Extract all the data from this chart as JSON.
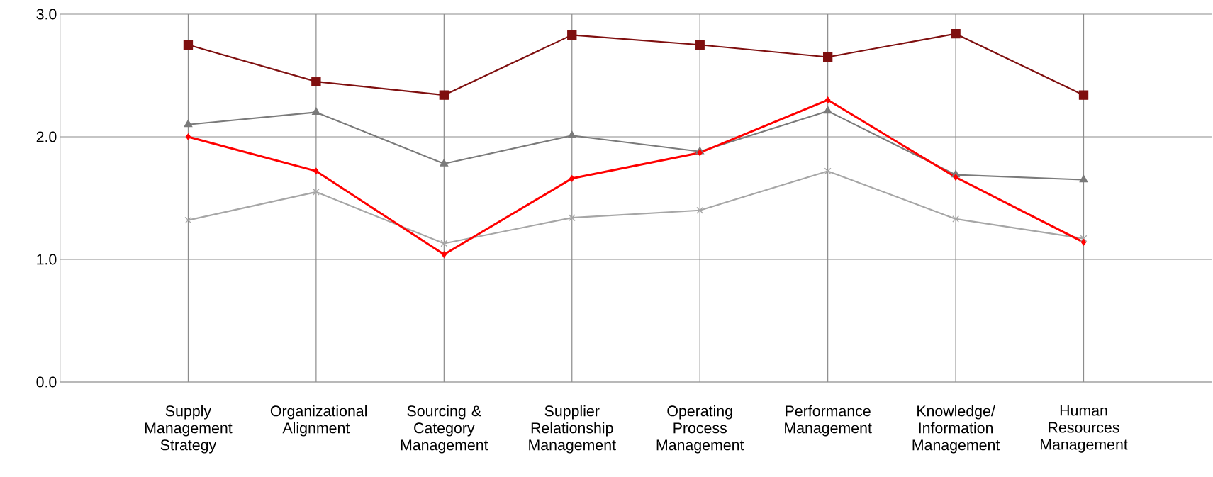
{
  "chart_data": {
    "type": "line",
    "categories": [
      "Supply Management Strategy",
      "Organizational Alignment",
      "Sourcing & Category Management",
      "Supplier Relationship Management",
      "Operating Process Management",
      "Performance Management",
      "Knowledge/ Information Management",
      "Human Resources Management"
    ],
    "series": [
      {
        "color": "#7f0f0f",
        "marker": "square",
        "values": [
          2.75,
          2.45,
          2.34,
          2.83,
          2.75,
          2.65,
          2.84,
          2.34
        ]
      },
      {
        "color": "#7a7a7a",
        "marker": "triangle",
        "values": [
          2.1,
          2.2,
          1.78,
          2.01,
          1.88,
          2.21,
          1.69,
          1.65
        ]
      },
      {
        "color": "#a6a6a6",
        "marker": "cross",
        "values": [
          1.32,
          1.55,
          1.13,
          1.34,
          1.4,
          1.72,
          1.33,
          1.17
        ]
      },
      {
        "color": "#ff0000",
        "marker": "diamond",
        "values": [
          2.0,
          1.72,
          1.04,
          1.66,
          1.87,
          2.3,
          1.67,
          1.14
        ]
      }
    ],
    "ylim": [
      0,
      3
    ],
    "yticks": [
      {
        "value": 0,
        "label": "0.0"
      },
      {
        "value": 1,
        "label": "1.0"
      },
      {
        "value": 2,
        "label": "2.0"
      },
      {
        "value": 3,
        "label": "3.0"
      }
    ],
    "grid": true
  }
}
